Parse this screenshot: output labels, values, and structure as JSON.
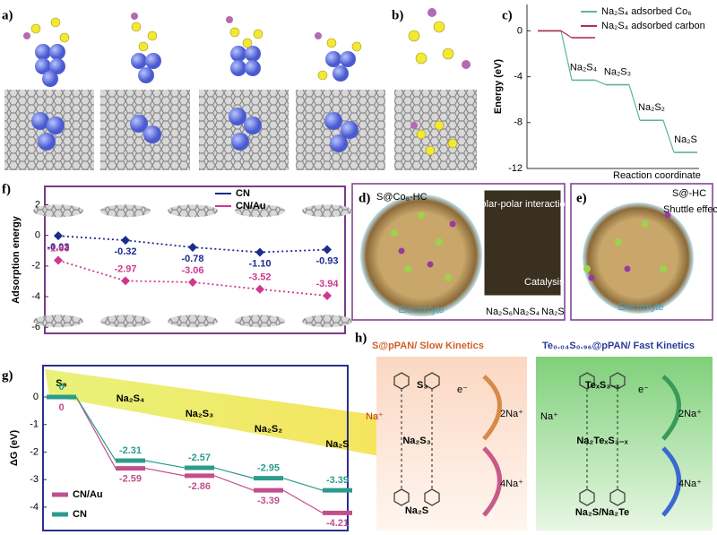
{
  "panel_labels": {
    "a": "a)",
    "b": "b)",
    "c": "c)",
    "d": "d)",
    "e": "e)",
    "f": "f)",
    "g": "g)",
    "h": "h)"
  },
  "chart_data": [
    {
      "type": "line",
      "step": true,
      "ylabel": "Energy (eV)",
      "xlabel": "Reaction coordinate",
      "categories": [
        null,
        "Na₂S₄",
        "Na₂S₃",
        "Na₂S₂",
        "Na₂S"
      ],
      "series": [
        {
          "name": "Na₂S₄ adsorbed Co₆",
          "color": "#5bb5a2",
          "values": [
            0,
            -4.3,
            -4.7,
            -7.8,
            -10.6
          ]
        },
        {
          "name": "Na₂S₄ adsorbed carbon",
          "color": "#b5304d",
          "values": [
            0,
            -0.6,
            null,
            null,
            null
          ]
        }
      ],
      "ylim": [
        -12,
        2.3
      ],
      "yticks": [
        0,
        -4,
        -8,
        -12
      ],
      "legend": "upper right"
    },
    {
      "type": "line",
      "step": false,
      "ylabel": "Adsorption energy",
      "frame_color": "#7a3a8a",
      "categories": [
        null,
        null,
        null,
        null,
        null
      ],
      "series": [
        {
          "name": "CN",
          "color": "#1c2b8f",
          "values": [
            -0.03,
            -0.32,
            -0.78,
            -1.1,
            -0.93
          ],
          "value_labels": [
            "-0.03",
            "-0.32",
            "-0.78",
            "-1.10",
            "-0.93"
          ]
        },
        {
          "name": "CN/Au",
          "color": "#d0378f",
          "values": [
            -1.63,
            -2.97,
            -3.06,
            -3.52,
            -3.94
          ]
        }
      ],
      "ylim": [
        -6.4,
        3.2
      ],
      "yticks": [
        2,
        0,
        -2,
        -4,
        -6
      ],
      "legend": "upper center"
    },
    {
      "type": "line",
      "step": true,
      "ylabel": "ΔG (eV)",
      "frame_color": "#2a2f8f",
      "categories": [
        "S₈",
        "Na₂S₄",
        "Na₂S₃",
        "Na₂S₂",
        "Na₂S"
      ],
      "series": [
        {
          "name": "CN/Au",
          "color": "#c24f8c",
          "values": [
            0,
            -2.59,
            -2.86,
            -3.39,
            -4.21
          ]
        },
        {
          "name": "CN",
          "color": "#2b9c8c",
          "values": [
            0,
            -2.31,
            -2.57,
            -2.95,
            -3.39
          ]
        }
      ],
      "ylim": [
        -4.85,
        1.14
      ],
      "yticks": [
        0,
        -1,
        -2,
        -3,
        -4
      ],
      "legend": "lower left"
    }
  ],
  "panel_d": {
    "title": "S@Co₆-HC",
    "callout": "Polar-polar interaction",
    "catalysis": "Catalysis",
    "electrolyte": "Electrolyte",
    "legend": [
      "Na₂S₆",
      "Na₂S₄",
      "Na₂S"
    ]
  },
  "panel_e": {
    "title": "S@-HC",
    "callout": "Shuttle effect",
    "electrolyte": "Electrolyte"
  },
  "panel_h": {
    "left": {
      "title": "S@pPAN/ Slow Kinetics",
      "na": "Na⁺",
      "e": "e⁻",
      "top": "S₃",
      "mid": "Na₂S₃",
      "bottom": "Na₂S",
      "step1": "2Na⁺",
      "step2": "4Na⁺"
    },
    "right": {
      "title": "Te₀.₀₄S₀.₉₆@pPAN/ Fast Kinetics",
      "na": "Na⁺",
      "e": "e⁻",
      "top": "TeₓS₃₋ₓ",
      "mid": "Na₂TeₓS₃₋ₓ",
      "bottom": "Na₂S/Na₂Te",
      "step1": "2Na⁺",
      "step2": "4Na⁺"
    }
  }
}
